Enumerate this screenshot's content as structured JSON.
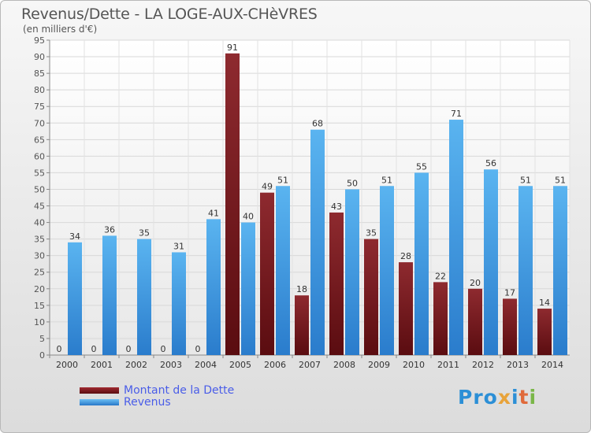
{
  "chart_data": {
    "type": "bar",
    "title": "Revenus/Dette - LA LOGE-AUX-CHèVRES",
    "subtitle": "(en milliers d'€)",
    "categories": [
      "2000",
      "2001",
      "2002",
      "2003",
      "2004",
      "2005",
      "2006",
      "2007",
      "2008",
      "2009",
      "2010",
      "2011",
      "2012",
      "2013",
      "2014"
    ],
    "series": [
      {
        "name": "Montant de la Dette",
        "color": "#7a1a1e",
        "values": [
          0,
          0,
          0,
          0,
          0,
          91,
          49,
          18,
          43,
          35,
          28,
          22,
          20,
          17,
          14
        ]
      },
      {
        "name": "Revenus",
        "color": "#3a9ae0",
        "values": [
          34,
          36,
          35,
          31,
          41,
          40,
          51,
          68,
          50,
          51,
          55,
          71,
          56,
          51,
          51
        ]
      }
    ],
    "ylim": [
      0,
      95
    ],
    "yticks": [
      0,
      5,
      10,
      15,
      20,
      25,
      30,
      35,
      40,
      45,
      50,
      55,
      60,
      65,
      70,
      75,
      80,
      85,
      90,
      95
    ],
    "grid": true,
    "legend_position": "bottom-left"
  },
  "brand": "Proxiti",
  "brand_letters": [
    "Pro",
    "x",
    "i",
    "t",
    "i"
  ]
}
